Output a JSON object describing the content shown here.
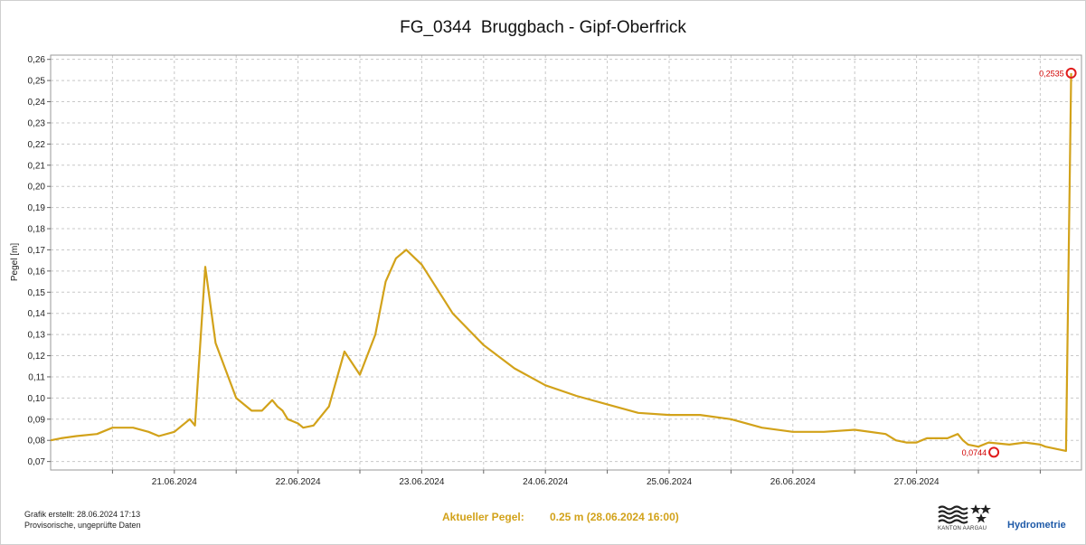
{
  "page": {
    "footer": {
      "created_label": "Grafik erstellt: 28.06.2024 17:13",
      "note": "Provisorische, ungeprüfte Daten",
      "current_level_label": "Aktueller Pegel:",
      "current_level_value": "0.25 m (28.06.2024 16:00)"
    },
    "branding": {
      "canton": "KANTON AARGAU",
      "service": "Hydrometrie"
    }
  },
  "colors": {
    "line": "#d2a21a",
    "marker": "#e01b1b",
    "marker_label": "#d10000",
    "grid": "#c8c8c8",
    "accent_blue": "#1e5aa8"
  },
  "chart_data": {
    "type": "line",
    "title": "FG_0344  Bruggbach - Gipf-Oberfrick",
    "xlabel": "",
    "ylabel": "Pegel [m]",
    "x_unit": "days (date axis)",
    "xlim": [
      "2024-06-20 00:00",
      "2024-06-28 08:00"
    ],
    "ylim": [
      0.066,
      0.262
    ],
    "x_ticks": [
      "21.06.2024",
      "22.06.2024",
      "23.06.2024",
      "24.06.2024",
      "25.06.2024",
      "26.06.2024",
      "27.06.2024"
    ],
    "y_ticks": [
      "0,07",
      "0,08",
      "0,09",
      "0,10",
      "0,11",
      "0,12",
      "0,13",
      "0,14",
      "0,15",
      "0,16",
      "0,17",
      "0,18",
      "0,19",
      "0,20",
      "0,21",
      "0,22",
      "0,23",
      "0,24",
      "0,25",
      "0,26"
    ],
    "grid": true,
    "series": [
      {
        "x": [
          "2024-06-20 00:00",
          "2024-06-20 02:00",
          "2024-06-20 05:00",
          "2024-06-20 09:00",
          "2024-06-20 12:00",
          "2024-06-20 16:00",
          "2024-06-20 19:00",
          "2024-06-20 21:00",
          "2024-06-21 00:00",
          "2024-06-21 03:00",
          "2024-06-21 04:00",
          "2024-06-21 06:00",
          "2024-06-21 08:00",
          "2024-06-21 12:00",
          "2024-06-21 15:00",
          "2024-06-21 17:00",
          "2024-06-21 19:00",
          "2024-06-21 20:00",
          "2024-06-21 21:00",
          "2024-06-21 22:00",
          "2024-06-21 23:00",
          "2024-06-22 00:00",
          "2024-06-22 01:00",
          "2024-06-22 03:00",
          "2024-06-22 06:00",
          "2024-06-22 09:00",
          "2024-06-22 12:00",
          "2024-06-22 15:00",
          "2024-06-22 17:00",
          "2024-06-22 19:00",
          "2024-06-22 21:00",
          "2024-06-23 00:00",
          "2024-06-23 06:00",
          "2024-06-23 12:00",
          "2024-06-23 18:00",
          "2024-06-24 00:00",
          "2024-06-24 06:00",
          "2024-06-24 12:00",
          "2024-06-24 18:00",
          "2024-06-25 00:00",
          "2024-06-25 06:00",
          "2024-06-25 12:00",
          "2024-06-25 18:00",
          "2024-06-26 00:00",
          "2024-06-26 06:00",
          "2024-06-26 12:00",
          "2024-06-26 18:00",
          "2024-06-26 20:00",
          "2024-06-26 22:00",
          "2024-06-27 00:00",
          "2024-06-27 01:00",
          "2024-06-27 02:00",
          "2024-06-27 04:00",
          "2024-06-27 06:00",
          "2024-06-27 08:00",
          "2024-06-27 09:00",
          "2024-06-27 10:00",
          "2024-06-27 12:00",
          "2024-06-27 14:00",
          "2024-06-27 18:00",
          "2024-06-27 21:00",
          "2024-06-28 00:00",
          "2024-06-28 01:00",
          "2024-06-28 03:00",
          "2024-06-28 05:00",
          "2024-06-28 06:00"
        ],
        "y": [
          0.08,
          0.081,
          0.082,
          0.083,
          0.086,
          0.086,
          0.084,
          0.082,
          0.084,
          0.09,
          0.087,
          0.162,
          0.126,
          0.1,
          0.094,
          0.094,
          0.099,
          0.096,
          0.094,
          0.09,
          0.089,
          0.088,
          0.086,
          0.087,
          0.096,
          0.122,
          0.111,
          0.13,
          0.155,
          0.166,
          0.17,
          0.163,
          0.14,
          0.125,
          0.114,
          0.106,
          0.101,
          0.097,
          0.093,
          0.092,
          0.092,
          0.09,
          0.086,
          0.084,
          0.084,
          0.085,
          0.083,
          0.08,
          0.079,
          0.079,
          0.08,
          0.081,
          0.081,
          0.081,
          0.083,
          0.08,
          0.078,
          0.077,
          0.079,
          0.078,
          0.079,
          0.078,
          0.077,
          0.076,
          0.075,
          0.2535
        ]
      }
    ],
    "annotations": [
      {
        "x": "2024-06-27 15:00",
        "y": 0.0744,
        "label": "0,0744",
        "kind": "min"
      },
      {
        "x": "2024-06-28 06:00",
        "y": 0.2535,
        "label": "0,2535",
        "kind": "max"
      }
    ]
  }
}
